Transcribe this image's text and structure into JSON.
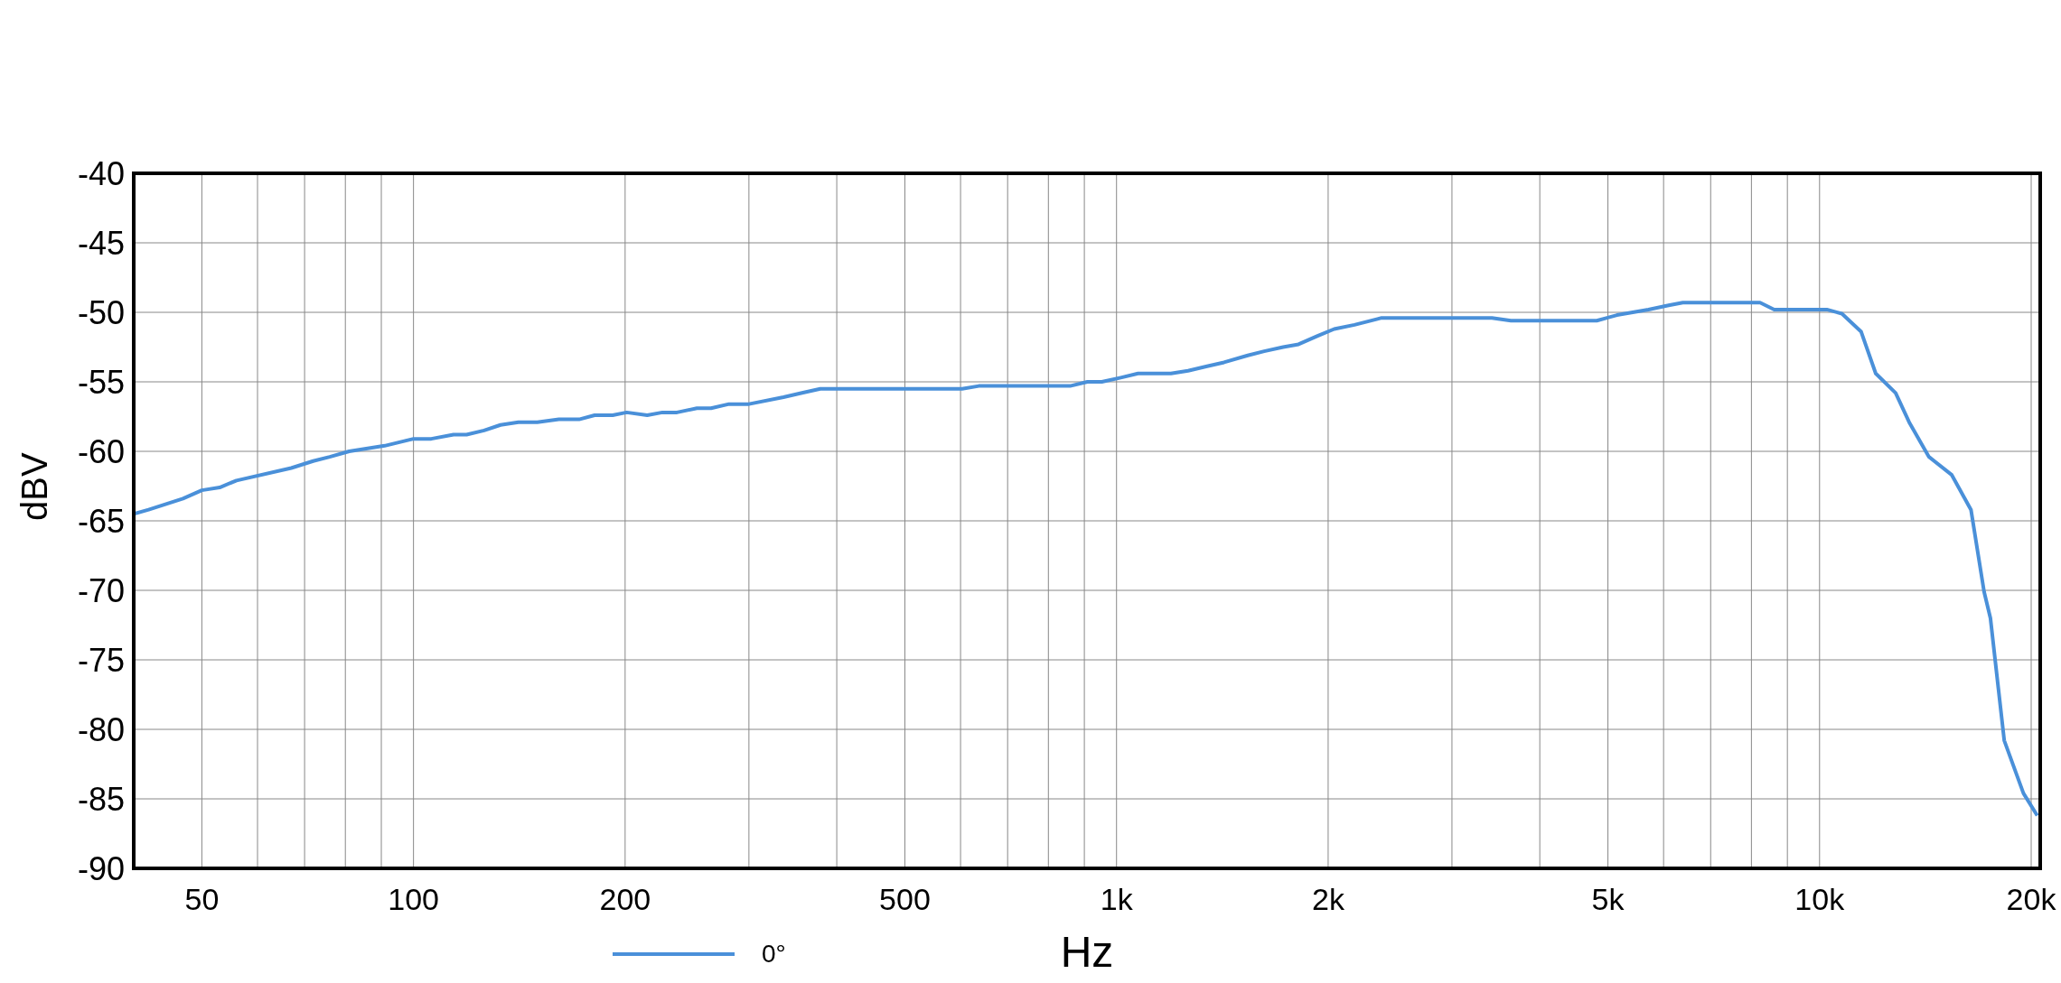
{
  "chart_data": {
    "type": "line",
    "xlabel": "Hz",
    "ylabel": "dBV",
    "log": "x",
    "grid": true,
    "legend": "bottom",
    "marker": "none",
    "line_style": "solid",
    "xlim": [
      40,
      20600
    ],
    "ylim": [
      -90,
      -40
    ],
    "xticks": [
      50,
      {
        "value": 60,
        "label": null
      },
      {
        "value": 70,
        "label": null
      },
      {
        "value": 80,
        "label": null
      },
      {
        "value": 90,
        "label": null
      },
      100,
      200,
      {
        "value": 300,
        "label": null
      },
      {
        "value": 400,
        "label": null
      },
      500,
      {
        "value": 600,
        "label": null
      },
      {
        "value": 700,
        "label": null
      },
      {
        "value": 800,
        "label": null
      },
      {
        "value": 900,
        "label": null
      },
      {
        "value": 1000,
        "label": "1k"
      },
      {
        "value": 2000,
        "label": "2k"
      },
      {
        "value": 3000,
        "label": null
      },
      {
        "value": 4000,
        "label": null
      },
      {
        "value": 5000,
        "label": "5k"
      },
      {
        "value": 6000,
        "label": null
      },
      {
        "value": 7000,
        "label": null
      },
      {
        "value": 8000,
        "label": null
      },
      {
        "value": 9000,
        "label": null
      },
      {
        "value": 10000,
        "label": "10k"
      },
      {
        "value": 20000,
        "label": "20k"
      }
    ],
    "yticks": [
      -90,
      -85,
      -80,
      -75,
      -70,
      -65,
      -60,
      -55,
      -50,
      -45,
      -40
    ],
    "series": [
      {
        "name": "0°",
        "color": "#4a90d9",
        "x": [
          40,
          42,
          47,
          50,
          53,
          56,
          67,
          72,
          76,
          81,
          91,
          100,
          106,
          114,
          119,
          126,
          133,
          141,
          150,
          161,
          172,
          181,
          192,
          201,
          215,
          226,
          237,
          253,
          265,
          281,
          300,
          336,
          357,
          379,
          603,
          637,
          859,
          909,
          953,
          1014,
          1073,
          1195,
          1264,
          1341,
          1422,
          1537,
          1622,
          1726,
          1815,
          1932,
          2040,
          2180,
          2383,
          3420,
          3640,
          4820,
          5150,
          5710,
          6100,
          6390,
          8230,
          8620,
          10240,
          10760,
          11460,
          12020,
          12830,
          13410,
          14310,
          15420,
          16420,
          17140,
          17500,
          18310,
          19500,
          20400
        ],
        "values": [
          -64.5,
          -64.2,
          -63.4,
          -62.8,
          -62.6,
          -62.1,
          -61.2,
          -60.7,
          -60.4,
          -60.0,
          -59.6,
          -59.1,
          -59.1,
          -58.8,
          -58.8,
          -58.5,
          -58.1,
          -57.9,
          -57.9,
          -57.7,
          -57.7,
          -57.4,
          -57.4,
          -57.2,
          -57.4,
          -57.2,
          -57.2,
          -56.9,
          -56.9,
          -56.6,
          -56.6,
          -56.1,
          -55.8,
          -55.5,
          -55.5,
          -55.3,
          -55.3,
          -55.0,
          -55.0,
          -54.7,
          -54.4,
          -54.4,
          -54.2,
          -53.9,
          -53.6,
          -53.1,
          -52.8,
          -52.5,
          -52.3,
          -51.7,
          -51.2,
          -50.9,
          -50.4,
          -50.4,
          -50.6,
          -50.6,
          -50.2,
          -49.8,
          -49.5,
          -49.3,
          -49.3,
          -49.8,
          -49.8,
          -50.1,
          -51.4,
          -54.4,
          -55.8,
          -57.9,
          -60.4,
          -61.7,
          -64.2,
          -70.1,
          -72.0,
          -80.8,
          -84.6,
          -86.2
        ]
      }
    ]
  }
}
